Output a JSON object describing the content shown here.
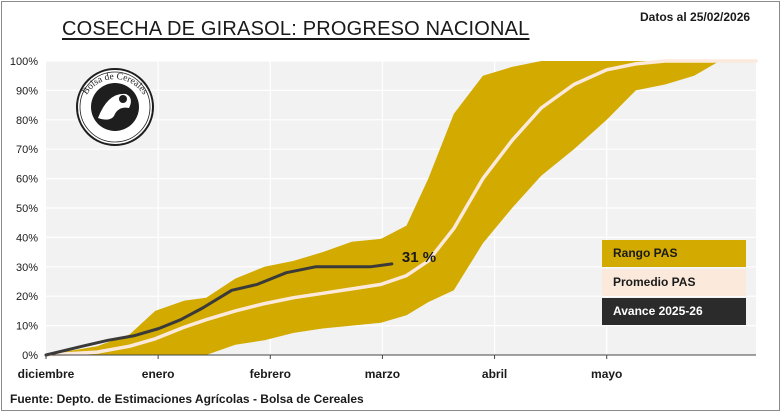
{
  "header": {
    "title": "COSECHA DE GIRASOL: PROGRESO NACIONAL",
    "date_note": "Datos al 25/02/2026"
  },
  "footer": {
    "source": "Fuente: Depto. de Estimaciones Agrícolas - Bolsa de Cereales"
  },
  "logo": {
    "text": "Bolsa de Cereales"
  },
  "colors": {
    "range": "#d3aa00",
    "average": "#fbe9dc",
    "current": "#3a3a3a",
    "plot_bg": "#f2f2f2",
    "grid": "#ffffff"
  },
  "chart_data": {
    "type": "area",
    "title": "COSECHA DE GIRASOL: PROGRESO NACIONAL",
    "xlabel": "",
    "ylabel": "",
    "x_months": [
      "diciembre",
      "enero",
      "febrero",
      "marzo",
      "abril",
      "mayo"
    ],
    "x_axis": "days elapsed from the start of diciembre; month ticks every ~30.8 days",
    "ylim": [
      0,
      100
    ],
    "y_ticks": [
      "0%",
      "10%",
      "20%",
      "30%",
      "40%",
      "50%",
      "60%",
      "70%",
      "80%",
      "90%",
      "100%"
    ],
    "grid": true,
    "legend_position": "right",
    "series": [
      {
        "name": "Rango PAS",
        "kind": "band",
        "x": [
          0,
          14,
          23,
          30,
          38,
          44,
          52,
          60,
          68,
          76,
          84,
          92,
          99,
          105,
          112,
          120,
          128,
          136,
          145,
          154,
          162,
          170,
          178,
          185,
          195
        ],
        "upper": [
          0,
          3,
          7,
          15,
          18.5,
          19.5,
          26,
          30,
          32,
          35,
          38.5,
          39.5,
          44,
          60,
          82,
          95,
          98,
          100,
          100,
          100,
          100,
          100,
          100,
          100,
          100
        ],
        "lower": [
          0,
          0,
          0,
          0,
          0,
          0,
          3.5,
          5,
          7.5,
          9,
          10,
          11,
          13.5,
          18,
          22,
          38,
          50,
          61,
          70,
          80,
          90,
          92,
          95,
          100,
          100
        ]
      },
      {
        "name": "Promedio PAS",
        "kind": "line",
        "x": [
          0,
          14,
          23,
          30,
          38,
          44,
          52,
          60,
          68,
          76,
          84,
          92,
          99,
          105,
          112,
          120,
          128,
          136,
          145,
          154,
          162,
          170,
          178,
          185,
          195
        ],
        "values": [
          0,
          1,
          3,
          5.5,
          9.5,
          12,
          15,
          17.5,
          19.5,
          21,
          22.5,
          24,
          27,
          32,
          43,
          60,
          73,
          84,
          92,
          97,
          99,
          100,
          100,
          100,
          100
        ]
      },
      {
        "name": "Avance 2025-26",
        "kind": "line",
        "x": [
          0,
          10,
          17,
          24,
          31,
          37,
          43,
          51,
          58,
          66,
          74,
          82,
          89,
          95
        ],
        "values": [
          0,
          3,
          5,
          6.5,
          9,
          12,
          16,
          22,
          24,
          28,
          30,
          30,
          30,
          31
        ]
      }
    ],
    "annotations": [
      {
        "text": "31 %",
        "series": "Avance 2025-26",
        "x": 95,
        "y": 31
      }
    ],
    "legend": [
      "Rango PAS",
      "Promedio PAS",
      "Avance 2025-26"
    ]
  }
}
